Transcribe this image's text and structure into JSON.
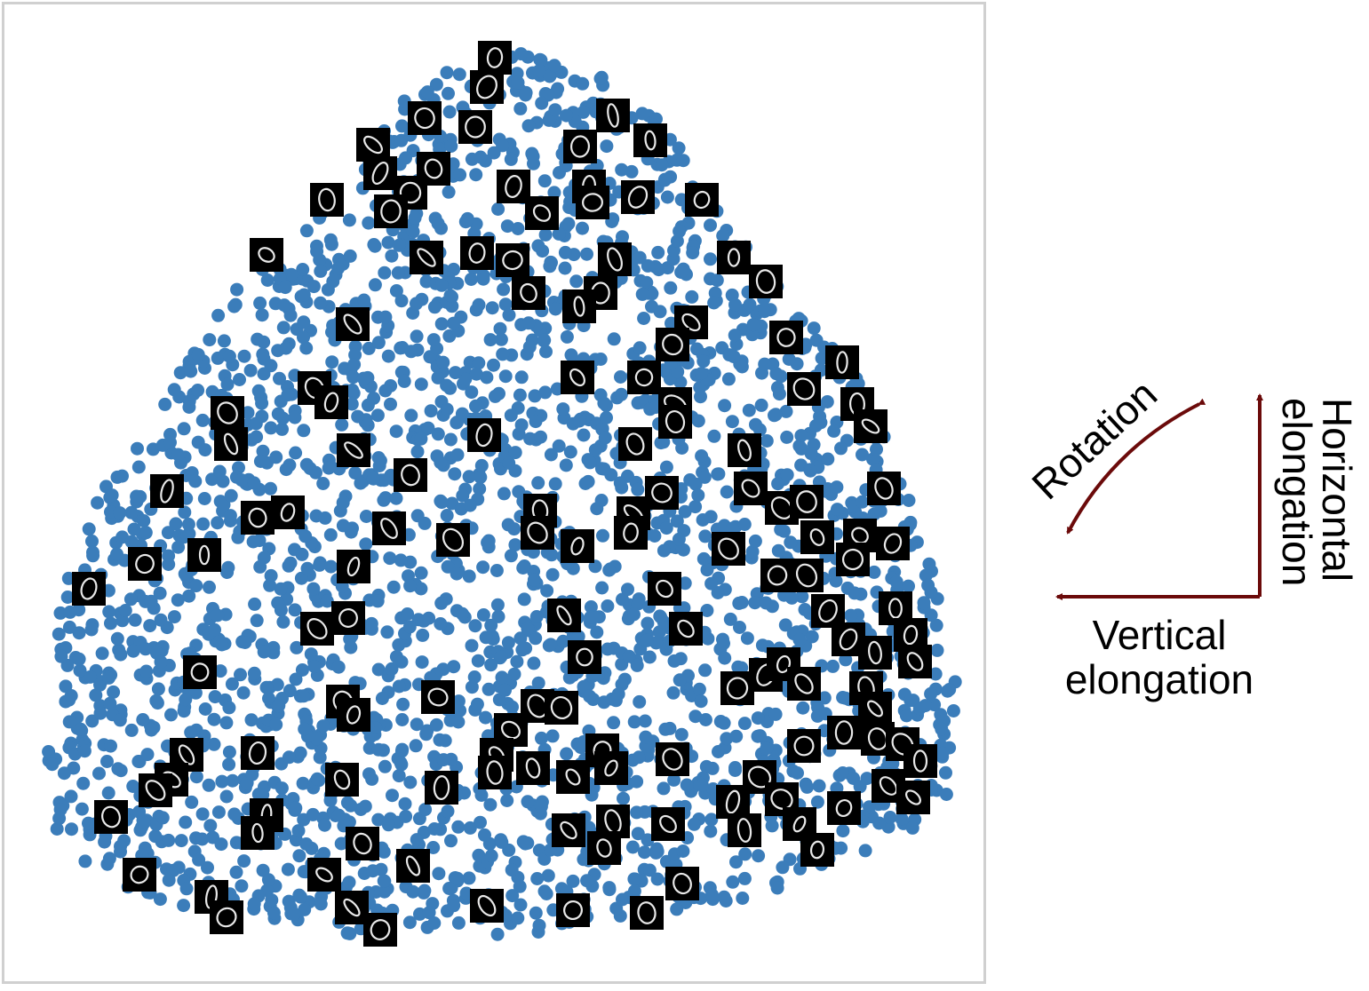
{
  "colors": {
    "point": "#3b7dba",
    "thumb_bg": "#000000",
    "thumb_stroke": "#e8e8e8",
    "arrow": "#6b0a0a",
    "frame": "#d0d0d0"
  },
  "legend": {
    "rotation_label": "Rotation",
    "horizontal_label_line1": "Horizontal",
    "horizontal_label_line2": "elongation",
    "vertical_label_line1": "Vertical",
    "vertical_label_line2": "elongation"
  },
  "embedding": {
    "glyph": "0",
    "point_cloud_shape": "rounded-triangle",
    "point_count_approx": 2600,
    "thumbnail_count_approx": 150
  }
}
